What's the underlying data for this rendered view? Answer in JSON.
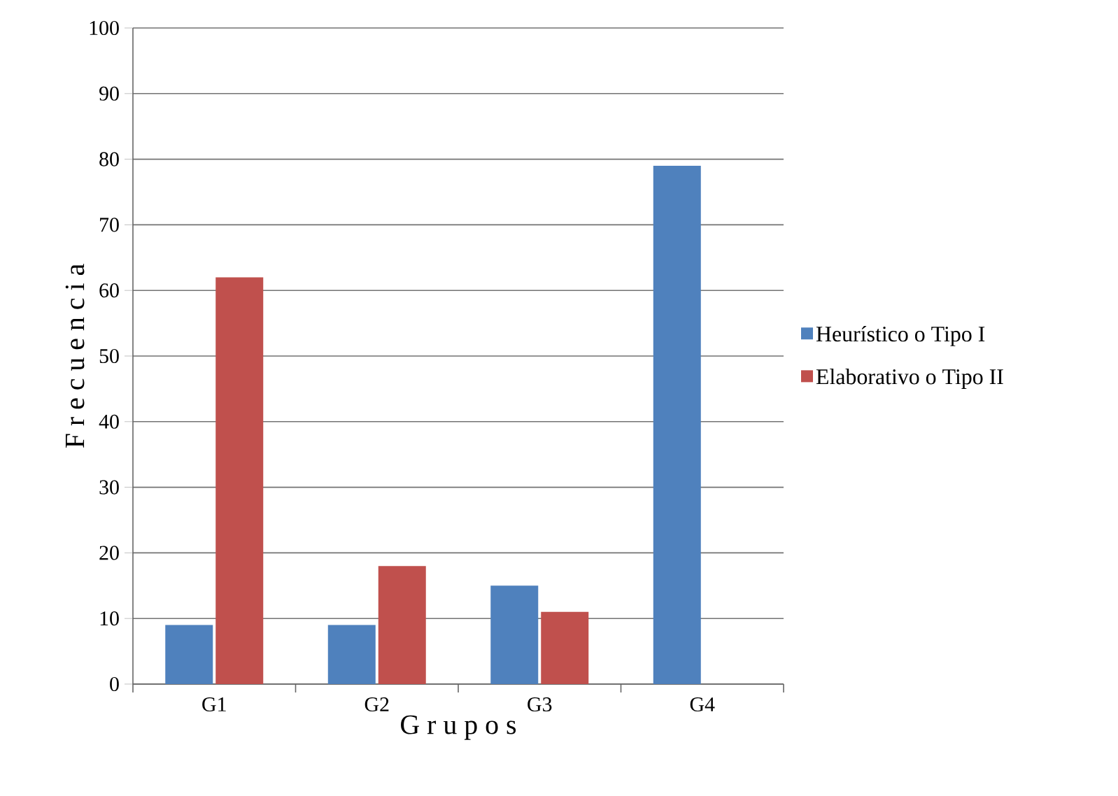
{
  "chart_data": {
    "type": "bar",
    "xlabel": "G r u p o s",
    "ylabel": "F r e c u e n c i a",
    "categories": [
      "G1",
      "G2",
      "G3",
      "G4"
    ],
    "series": [
      {
        "name": "Heurístico o Tipo I",
        "color": "#4f81bd",
        "values": [
          9,
          9,
          15,
          79
        ]
      },
      {
        "name": "Elaborativo o Tipo II",
        "color": "#c0504d",
        "values": [
          62,
          18,
          11,
          null
        ]
      }
    ],
    "ylim": [
      0,
      100
    ],
    "yticks": [
      0,
      10,
      20,
      30,
      40,
      50,
      60,
      70,
      80,
      90,
      100
    ],
    "grid": "y",
    "legend": "right"
  }
}
